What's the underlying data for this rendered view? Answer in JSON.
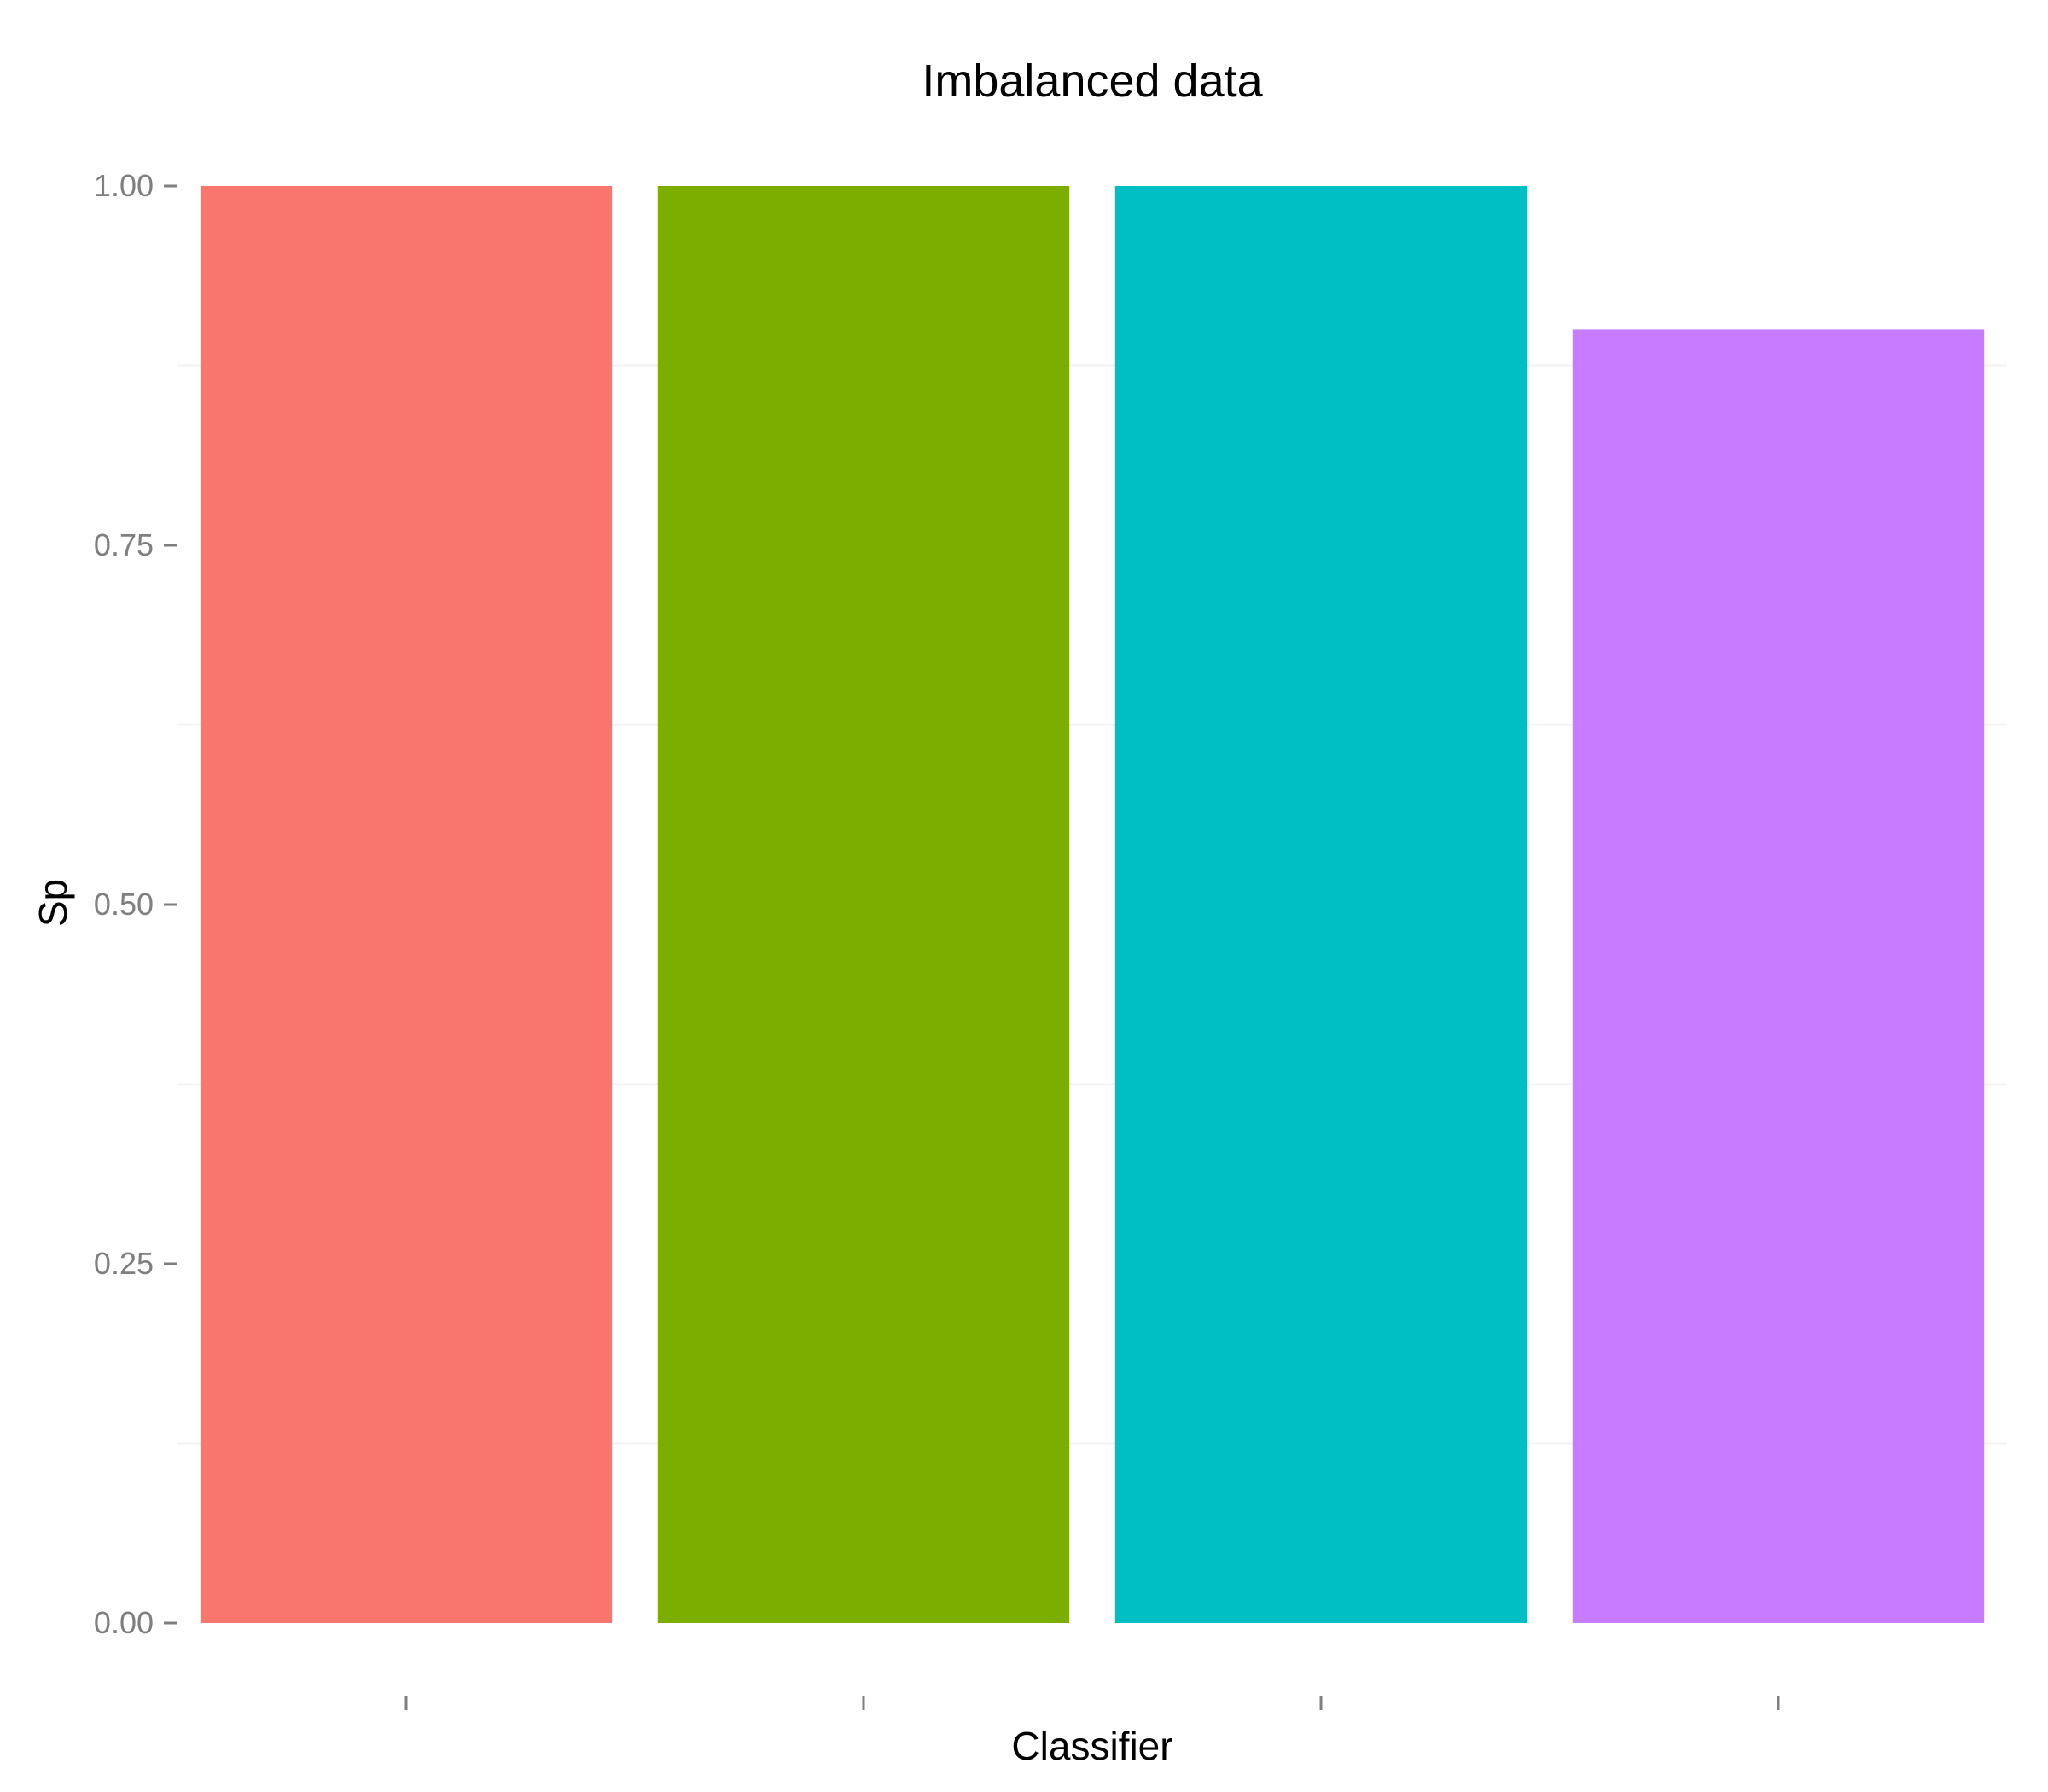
{
  "chart_data": {
    "type": "bar",
    "title": "Imbalanced data",
    "xlabel": "Classifier",
    "ylabel": "Sp",
    "categories": [
      "",
      "",
      "",
      ""
    ],
    "values": [
      1.0,
      1.0,
      1.0,
      0.9
    ],
    "colors": [
      "#F8766D",
      "#7CAE00",
      "#00BFC4",
      "#C77CFF"
    ],
    "ylim": [
      0,
      1.0
    ],
    "yticks": [
      0,
      0.25,
      0.5,
      0.75,
      1.0
    ],
    "ytick_labels": [
      "0.00",
      "0.25",
      "0.50",
      "0.75",
      "1.00"
    ],
    "minor_gridlines": [
      0.125,
      0.375,
      0.625,
      0.875
    ],
    "grid": true,
    "legend": "none"
  }
}
